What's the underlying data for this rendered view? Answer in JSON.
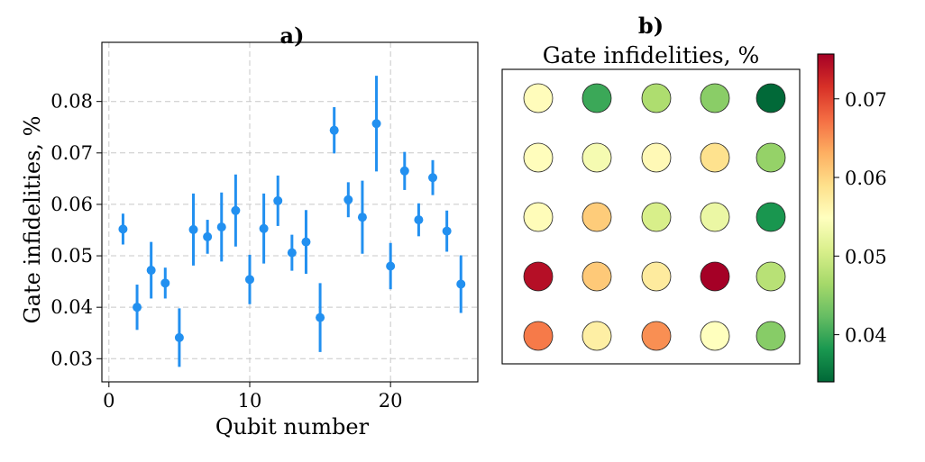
{
  "chart_data": [
    {
      "type": "scatter",
      "panel_label": "a)",
      "title": "",
      "xlabel": "Qubit number",
      "ylabel": "Gate infidelities, %",
      "xlim": [
        -0.5,
        26.2
      ],
      "ylim": [
        0.0255,
        0.0915
      ],
      "xticks": [
        0,
        10,
        20
      ],
      "xtick_labels": [
        "0",
        "10",
        "20"
      ],
      "yticks": [
        0.03,
        0.04,
        0.05,
        0.06,
        0.07,
        0.08
      ],
      "ytick_labels": [
        "0.03",
        "0.04",
        "0.05",
        "0.06",
        "0.07",
        "0.08"
      ],
      "grid": true,
      "marker_color": "#2290f0",
      "series": [
        {
          "name": "Gate infidelities",
          "x": [
            1,
            2,
            3,
            4,
            5,
            6,
            7,
            8,
            9,
            10,
            11,
            12,
            13,
            14,
            15,
            16,
            17,
            18,
            19,
            20,
            21,
            22,
            23,
            24,
            25
          ],
          "y": [
            0.0552,
            0.04,
            0.0472,
            0.0447,
            0.0341,
            0.0551,
            0.0537,
            0.0556,
            0.0588,
            0.0454,
            0.0553,
            0.0607,
            0.0506,
            0.0527,
            0.038,
            0.0744,
            0.0609,
            0.0575,
            0.0757,
            0.048,
            0.0665,
            0.057,
            0.0652,
            0.0548,
            0.0445
          ],
          "yerr": [
            0.003,
            0.0044,
            0.0055,
            0.003,
            0.0057,
            0.007,
            0.0033,
            0.0067,
            0.007,
            0.0048,
            0.0068,
            0.0049,
            0.0035,
            0.0062,
            0.0067,
            0.0045,
            0.0034,
            0.0071,
            0.0093,
            0.0045,
            0.0037,
            0.0032,
            0.0034,
            0.004,
            0.0056
          ]
        }
      ]
    },
    {
      "type": "heatmap",
      "panel_label": "b)",
      "title": "Gate infidelities, %",
      "rows": 5,
      "cols": 5,
      "values": [
        [
          0.0552,
          0.04,
          0.0472,
          0.0447,
          0.0341
        ],
        [
          0.0551,
          0.0537,
          0.0556,
          0.0588,
          0.0454
        ],
        [
          0.0553,
          0.0607,
          0.0506,
          0.0527,
          0.038
        ],
        [
          0.0744,
          0.0609,
          0.0575,
          0.0757,
          0.048
        ],
        [
          0.0665,
          0.057,
          0.0652,
          0.0548,
          0.0445
        ]
      ],
      "colorbar": {
        "range": [
          0.034,
          0.0757
        ],
        "ticks": [
          0.04,
          0.05,
          0.06,
          0.07
        ],
        "tick_labels": [
          "0.04",
          "0.05",
          "0.06",
          "0.07"
        ],
        "colormap": "RdYlGn_r",
        "stops": [
          "#006837",
          "#1a9850",
          "#66bd63",
          "#a6d96a",
          "#d9ef8b",
          "#ffffbf",
          "#fee08b",
          "#fdae61",
          "#f46d43",
          "#d73027",
          "#a50026"
        ]
      }
    }
  ]
}
